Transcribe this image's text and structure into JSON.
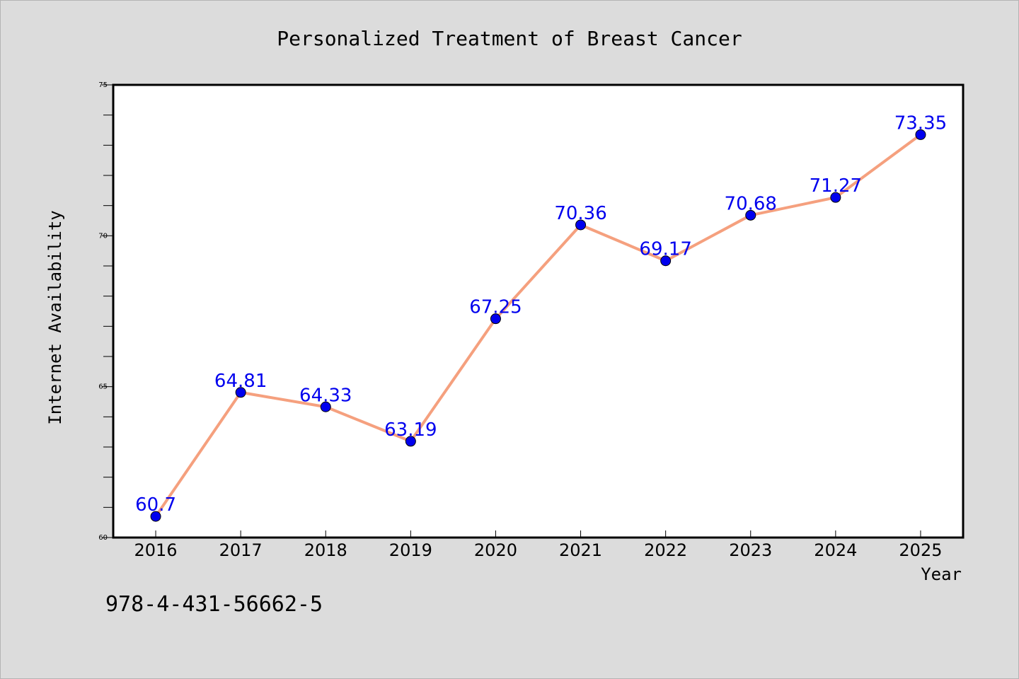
{
  "chart_data": {
    "type": "line",
    "title": "Personalized Treatment of Breast Cancer",
    "xlabel": "Year",
    "ylabel": "Internet Availability",
    "ylim": [
      60,
      75
    ],
    "yticks": [
      "60",
      "65",
      "70",
      "75"
    ],
    "categories": [
      "2016",
      "2017",
      "2018",
      "2019",
      "2020",
      "2021",
      "2022",
      "2023",
      "2024",
      "2025"
    ],
    "series": [
      {
        "values": [
          60.7,
          64.81,
          64.33,
          63.19,
          67.25,
          70.36,
          69.17,
          70.68,
          71.27,
          73.35
        ],
        "data_labels": [
          "60.7",
          "64.81",
          "64.33",
          "63.19",
          "67.25",
          "70.36",
          "69.17",
          "70.68",
          "71.27",
          "73.35"
        ]
      }
    ],
    "grid": false,
    "legend": "none"
  },
  "annotation": "978-4-431-56662-5",
  "colors": {
    "background": "#dcdcdc",
    "plot_background": "#ffffff",
    "line": "#f5a07e",
    "marker": "#0000ee",
    "data_label": "#0000ee",
    "text": "#000000"
  }
}
